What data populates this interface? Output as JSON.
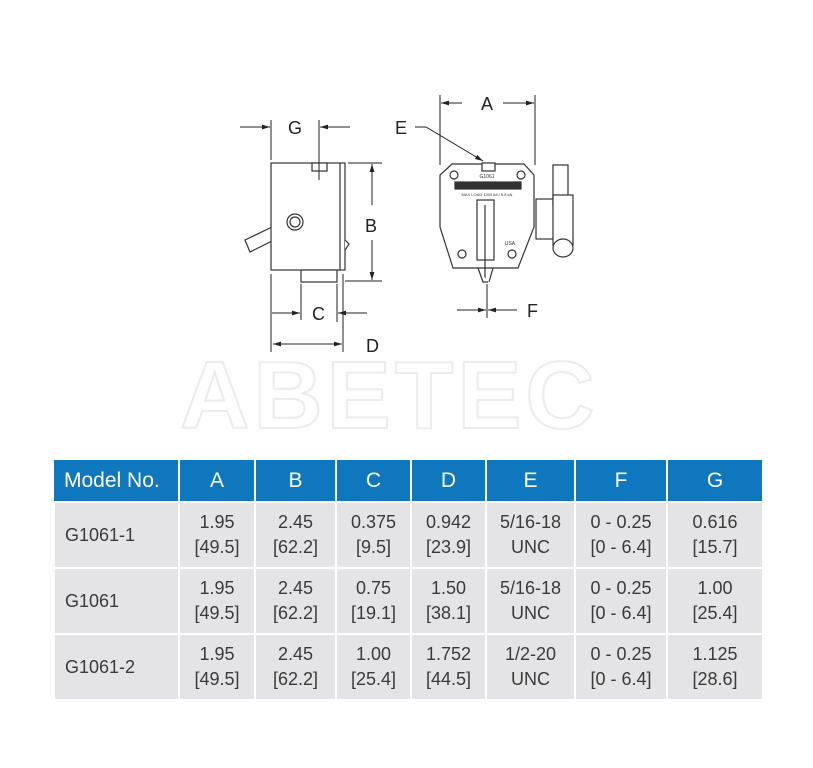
{
  "diagram": {
    "labels": {
      "A": "A",
      "B": "B",
      "C": "C",
      "D": "D",
      "E": "E",
      "F": "F",
      "G": "G"
    },
    "plate_model": "G1061",
    "plate_load": "MAX LOAD 1300 lbf / 5.8 kN",
    "plate_origin": "USA",
    "watermark": "ABETEC"
  },
  "table": {
    "headers": [
      "Model No.",
      "A",
      "B",
      "C",
      "D",
      "E",
      "F",
      "G"
    ],
    "rows": [
      {
        "model": "G1061-1",
        "cells": [
          [
            "1.95",
            "[49.5]"
          ],
          [
            "2.45",
            "[62.2]"
          ],
          [
            "0.375",
            "[9.5]"
          ],
          [
            "0.942",
            "[23.9]"
          ],
          [
            "5/16-18",
            "UNC"
          ],
          [
            "0 - 0.25",
            "[0 - 6.4]"
          ],
          [
            "0.616",
            "[15.7]"
          ]
        ]
      },
      {
        "model": "G1061",
        "cells": [
          [
            "1.95",
            "[49.5]"
          ],
          [
            "2.45",
            "[62.2]"
          ],
          [
            "0.75",
            "[19.1]"
          ],
          [
            "1.50",
            "[38.1]"
          ],
          [
            "5/16-18",
            "UNC"
          ],
          [
            "0 - 0.25",
            "[0 - 6.4]"
          ],
          [
            "1.00",
            "[25.4]"
          ]
        ]
      },
      {
        "model": "G1061-2",
        "cells": [
          [
            "1.95",
            "[49.5]"
          ],
          [
            "2.45",
            "[62.2]"
          ],
          [
            "1.00",
            "[25.4]"
          ],
          [
            "1.752",
            "[44.5]"
          ],
          [
            "1/2-20",
            "UNC"
          ],
          [
            "0 - 0.25",
            "[0 - 6.4]"
          ],
          [
            "1.125",
            "[28.6]"
          ]
        ]
      }
    ]
  },
  "colors": {
    "header_bg": "#0f77bd",
    "row_bg": "#e4e4e6"
  }
}
